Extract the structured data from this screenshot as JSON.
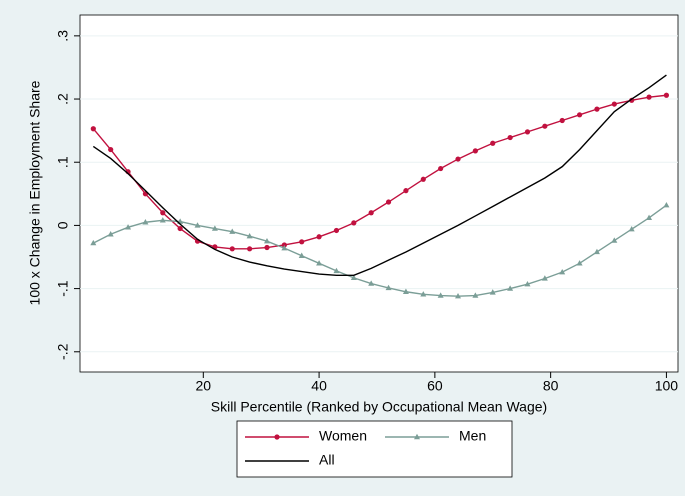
{
  "chart_data": {
    "type": "line",
    "ylabel": "100 x Change in Employment Share",
    "xlabel": "Skill Percentile (Ranked by Occupational Mean Wage)",
    "x": [
      1,
      4,
      7,
      10,
      13,
      16,
      19,
      22,
      25,
      28,
      31,
      34,
      37,
      40,
      43,
      46,
      49,
      52,
      55,
      58,
      61,
      64,
      67,
      70,
      73,
      76,
      79,
      82,
      85,
      88,
      91,
      94,
      97,
      100
    ],
    "series": [
      {
        "name": "Women",
        "color": "#c1113f",
        "marker": "circle",
        "values": [
          0.153,
          0.12,
          0.085,
          0.05,
          0.02,
          -0.005,
          -0.025,
          -0.034,
          -0.037,
          -0.037,
          -0.035,
          -0.031,
          -0.026,
          -0.018,
          -0.008,
          0.004,
          0.02,
          0.037,
          0.055,
          0.073,
          0.09,
          0.105,
          0.118,
          0.13,
          0.139,
          0.148,
          0.157,
          0.166,
          0.175,
          0.184,
          0.192,
          0.198,
          0.203,
          0.206
        ]
      },
      {
        "name": "Men",
        "color": "#7b9e97",
        "marker": "triangle",
        "values": [
          -0.028,
          -0.014,
          -0.003,
          0.005,
          0.008,
          0.006,
          0.0,
          -0.005,
          -0.01,
          -0.017,
          -0.025,
          -0.036,
          -0.048,
          -0.06,
          -0.072,
          -0.083,
          -0.092,
          -0.099,
          -0.105,
          -0.109,
          -0.111,
          -0.112,
          -0.111,
          -0.106,
          -0.1,
          -0.093,
          -0.084,
          -0.074,
          -0.06,
          -0.042,
          -0.024,
          -0.006,
          0.012,
          0.032
        ]
      },
      {
        "name": "All",
        "color": "#000000",
        "marker": null,
        "values": [
          0.125,
          0.106,
          0.082,
          0.055,
          0.028,
          0.002,
          -0.022,
          -0.038,
          -0.05,
          -0.058,
          -0.064,
          -0.069,
          -0.073,
          -0.077,
          -0.079,
          -0.079,
          -0.068,
          -0.055,
          -0.042,
          -0.028,
          -0.014,
          0.0,
          0.015,
          0.03,
          0.045,
          0.06,
          0.075,
          0.093,
          0.12,
          0.15,
          0.18,
          0.2,
          0.218,
          0.238
        ]
      }
    ],
    "xlim": [
      -1.3,
      102
    ],
    "xticks": [
      20,
      40,
      60,
      80,
      100
    ],
    "ylim": [
      -0.232,
      0.333
    ],
    "yticks": [
      {
        "value": -0.2,
        "label": "-.2"
      },
      {
        "value": -0.1,
        "label": "-.1"
      },
      0,
      {
        "value": 0.1,
        "label": ".1"
      },
      {
        "value": 0.2,
        "label": ".2"
      },
      {
        "value": 0.3,
        "label": ".3"
      }
    ],
    "grid": true,
    "legend": "bottom"
  }
}
